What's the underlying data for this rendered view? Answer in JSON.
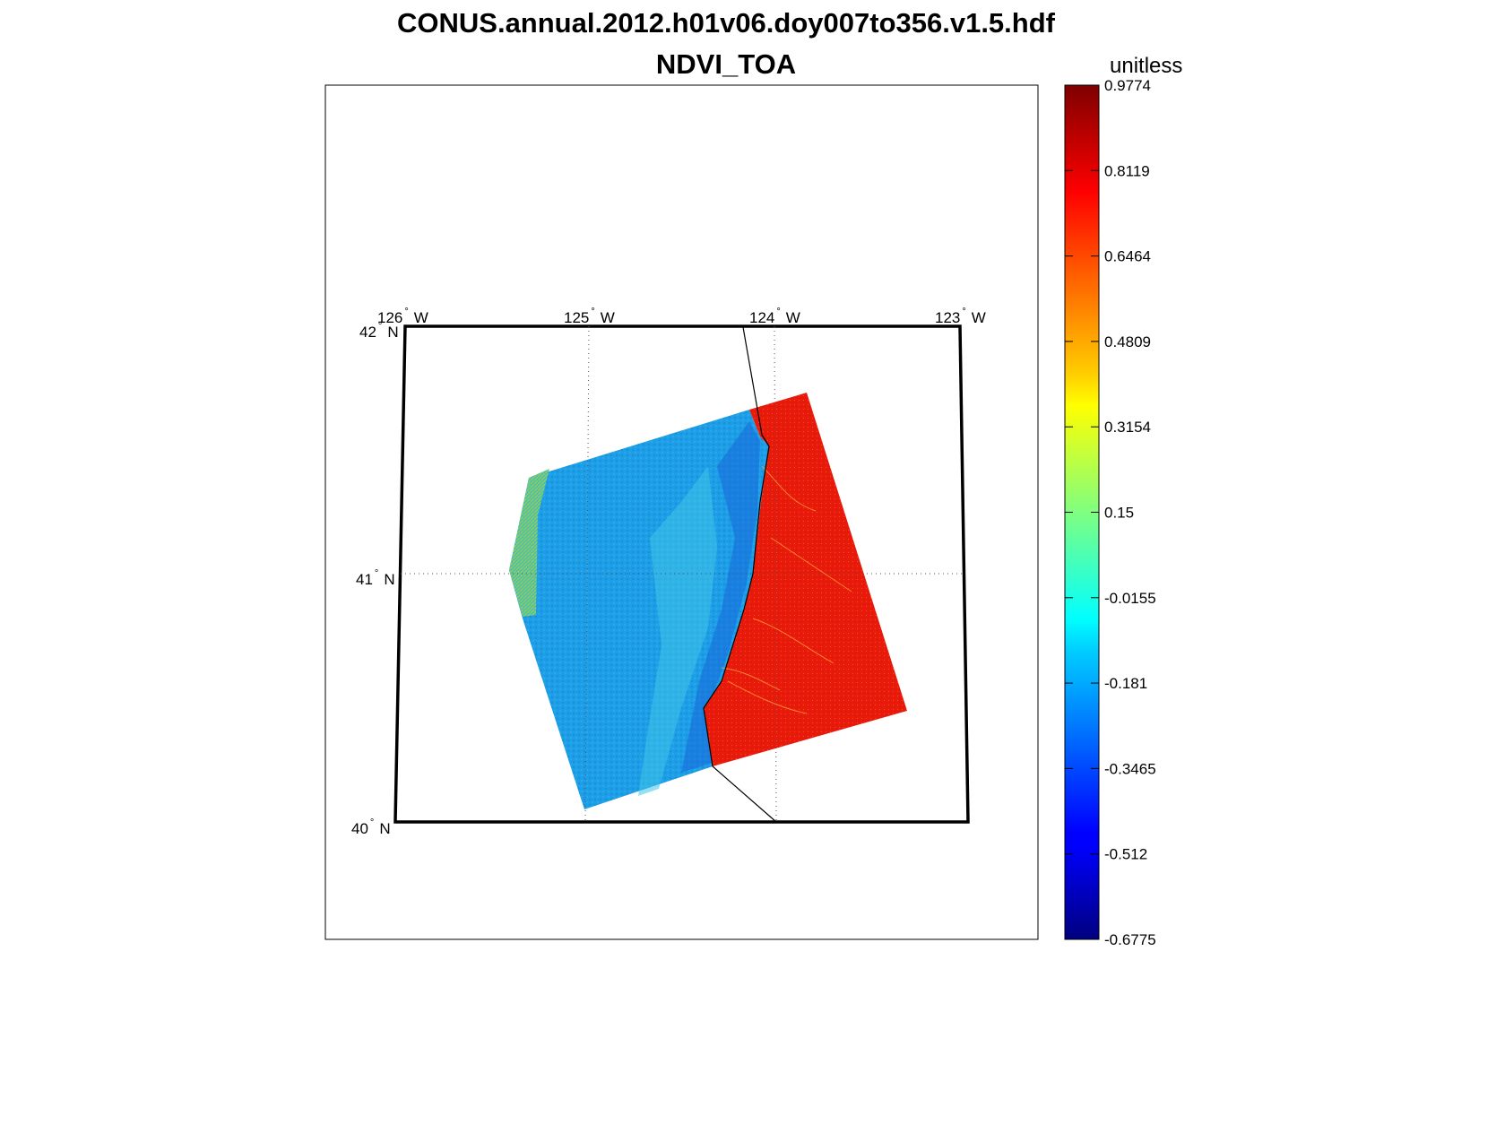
{
  "title": {
    "line1": "CONUS.annual.2012.h01v06.doy007to356.v1.5.hdf",
    "line2": "NDVI_TOA"
  },
  "colorbar": {
    "units": "unitless",
    "min": -0.6775,
    "max": 0.9774,
    "colormap": "jet",
    "ticks": [
      {
        "value": 0.9774,
        "label": "0.9774"
      },
      {
        "value": 0.8119,
        "label": "0.8119"
      },
      {
        "value": 0.6464,
        "label": "0.6464"
      },
      {
        "value": 0.4809,
        "label": "0.4809"
      },
      {
        "value": 0.3154,
        "label": "0.3154"
      },
      {
        "value": 0.15,
        "label": "0.15"
      },
      {
        "value": -0.0155,
        "label": "-0.0155"
      },
      {
        "value": -0.181,
        "label": "-0.181"
      },
      {
        "value": -0.3465,
        "label": "-0.3465"
      },
      {
        "value": -0.512,
        "label": "-0.512"
      },
      {
        "value": -0.6775,
        "label": "-0.6775"
      }
    ]
  },
  "map": {
    "projection": "sinusoidal",
    "lon_range": [
      -126,
      -123
    ],
    "lat_range": [
      40,
      42
    ],
    "grid": true,
    "meridians": [
      {
        "lon": -126,
        "label": "126",
        "unit": "W"
      },
      {
        "lon": -125,
        "label": "125",
        "unit": "W"
      },
      {
        "lon": -124,
        "label": "124",
        "unit": "W"
      },
      {
        "lon": -123,
        "label": "123",
        "unit": "W"
      }
    ],
    "parallels": [
      {
        "lat": 42,
        "label": "42",
        "unit": "N"
      },
      {
        "lat": 41,
        "label": "41",
        "unit": "N"
      },
      {
        "lat": 40,
        "label": "40",
        "unit": "N"
      }
    ],
    "degree_symbol": "°",
    "regions": [
      {
        "name": "ocean",
        "ndvi_approx": -0.2,
        "color": "#1e9ee6"
      },
      {
        "name": "land",
        "ndvi_approx": 0.85,
        "color": "#e81a0c"
      },
      {
        "name": "swath-edge",
        "ndvi_approx": 0.15,
        "color": "#6cc96a"
      }
    ]
  }
}
